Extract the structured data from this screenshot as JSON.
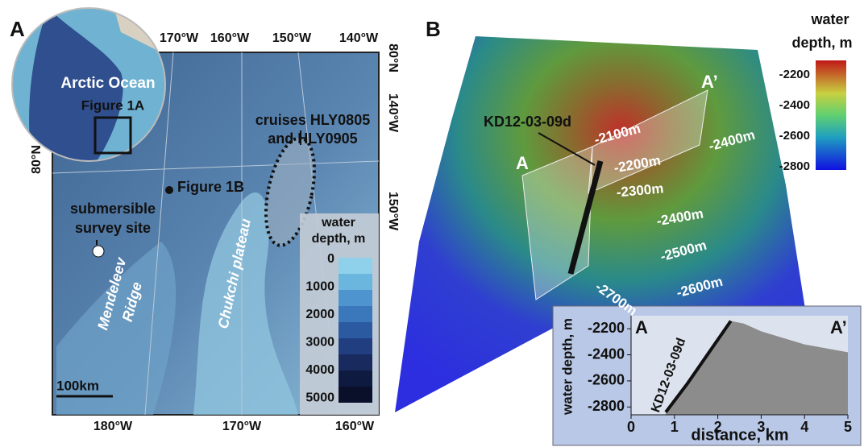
{
  "panel_a": {
    "label": "A",
    "top_longitudes": [
      "170°W",
      "160°W",
      "150°W",
      "140°W"
    ],
    "right_labels": [
      "80°N",
      "140°W",
      "150°W"
    ],
    "left_latitude": "80°N",
    "bottom_longitudes": [
      "180°W",
      "170°W",
      "160°W"
    ],
    "inset": {
      "ocean": "Arctic Ocean",
      "box": "Figure 1A"
    },
    "annotations": {
      "cruises": [
        "cruises HLY0805",
        "and HLY0905"
      ],
      "figure_1b": "Figure 1B",
      "site": [
        "submersible",
        "survey site"
      ],
      "ridge": [
        "Mendeleev",
        "Ridge"
      ],
      "plateau": "Chukchi plateau",
      "scale": "100km"
    },
    "legend": {
      "title": [
        "water",
        "depth, m"
      ],
      "labels": [
        "0",
        "1000",
        "2000",
        "3000",
        "4000",
        "5000"
      ]
    }
  },
  "panel_b": {
    "label": "B",
    "legend": {
      "title": [
        "water",
        "depth, m"
      ],
      "labels": [
        "-2200",
        "-2400",
        "-2600",
        "-2800"
      ]
    },
    "section": [
      "A",
      "A’"
    ],
    "core": "KD12-03-09d",
    "contours": [
      "-2100m",
      "-2200m",
      "-2300m",
      "-2400m",
      "-2400m",
      "-2500m",
      "-2600m",
      "-2700m"
    ],
    "profile": {
      "type": "area",
      "section": [
        "A",
        "A’"
      ],
      "core": "KD12-03-09d",
      "x": [
        0.8,
        1.3,
        1.8,
        2.3,
        2.6,
        3,
        3.5,
        4,
        4.5,
        5
      ],
      "y": [
        -2840,
        -2620,
        -2380,
        -2140,
        -2160,
        -2220,
        -2270,
        -2320,
        -2350,
        -2380
      ],
      "xlim": [
        0,
        5
      ],
      "ylim": [
        -2860,
        -2100
      ],
      "xticks": [
        0,
        1,
        2,
        3,
        4,
        5
      ],
      "yticks": [
        -2200,
        -2400,
        -2600,
        -2800
      ],
      "xlabel": "distance, km",
      "ylabel": "water depth, m"
    }
  }
}
